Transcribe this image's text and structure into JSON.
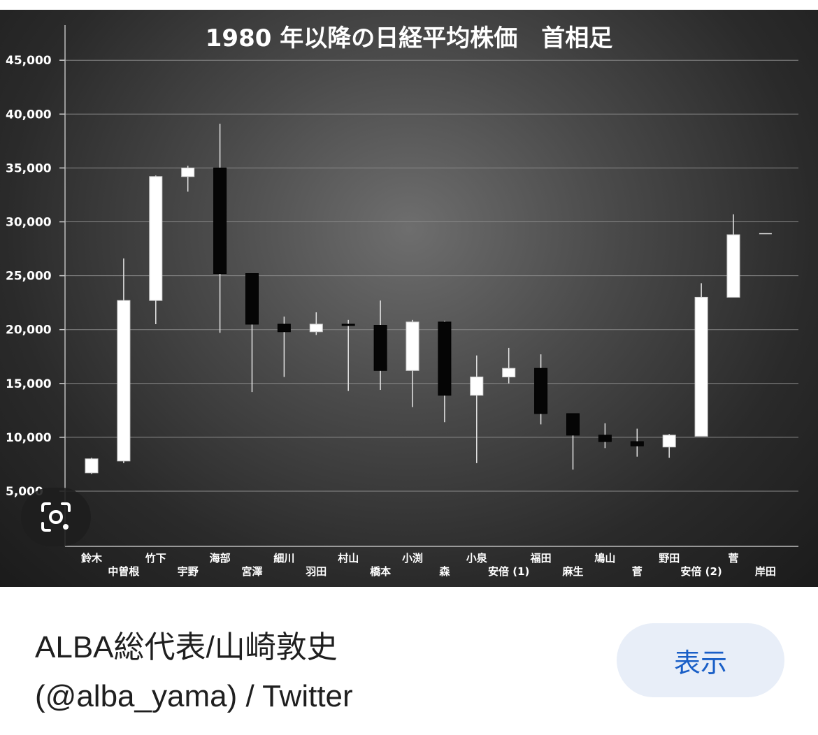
{
  "chart_data": {
    "type": "candlestick",
    "title": "1980 年以降の日経平均株価　首相足",
    "xlabel": "",
    "ylabel": "",
    "ylim": [
      0,
      47500
    ],
    "y_ticks": [
      {
        "value": 5000,
        "label": "5,000"
      },
      {
        "value": 10000,
        "label": "10,000"
      },
      {
        "value": 15000,
        "label": "15,000"
      },
      {
        "value": 20000,
        "label": "20,000"
      },
      {
        "value": 25000,
        "label": "25,000"
      },
      {
        "value": 30000,
        "label": "30,000"
      },
      {
        "value": 35000,
        "label": "35,000"
      },
      {
        "value": 40000,
        "label": "40,000"
      },
      {
        "value": 45000,
        "label": "45,000"
      }
    ],
    "grid": true,
    "categories": [
      "鈴木",
      "中曽根",
      "竹下",
      "宇野",
      "海部",
      "宮澤",
      "細川",
      "羽田",
      "村山",
      "橋本",
      "小渕",
      "森",
      "小泉",
      "安倍 (1)",
      "福田",
      "麻生",
      "鳩山",
      "菅",
      "野田",
      "安倍 (2)",
      "菅",
      "岸田"
    ],
    "candles": [
      {
        "name": "鈴木",
        "open": 6700,
        "close": 8000,
        "high": 8100,
        "low": 6600
      },
      {
        "name": "中曽根",
        "open": 7800,
        "close": 22700,
        "high": 26600,
        "low": 7600
      },
      {
        "name": "竹下",
        "open": 22700,
        "close": 34200,
        "high": 34300,
        "low": 20500
      },
      {
        "name": "宇野",
        "open": 34200,
        "close": 35000,
        "high": 35200,
        "low": 32800
      },
      {
        "name": "海部",
        "open": 35000,
        "close": 25200,
        "high": 39100,
        "low": 19700
      },
      {
        "name": "宮澤",
        "open": 25200,
        "close": 20500,
        "high": 25200,
        "low": 14200
      },
      {
        "name": "細川",
        "open": 20500,
        "close": 19800,
        "high": 21200,
        "low": 15600
      },
      {
        "name": "羽田",
        "open": 19800,
        "close": 20500,
        "high": 21600,
        "low": 19500
      },
      {
        "name": "村山",
        "open": 20500,
        "close": 20400,
        "high": 20900,
        "low": 14300
      },
      {
        "name": "橋本",
        "open": 20400,
        "close": 16200,
        "high": 22700,
        "low": 14400
      },
      {
        "name": "小渕",
        "open": 16200,
        "close": 20700,
        "high": 20900,
        "low": 12800
      },
      {
        "name": "森",
        "open": 20700,
        "close": 13900,
        "high": 20800,
        "low": 11400
      },
      {
        "name": "小泉",
        "open": 13900,
        "close": 15600,
        "high": 17600,
        "low": 7600
      },
      {
        "name": "安倍 (1)",
        "open": 15600,
        "close": 16400,
        "high": 18300,
        "low": 15000
      },
      {
        "name": "福田",
        "open": 16400,
        "close": 12200,
        "high": 17700,
        "low": 11200
      },
      {
        "name": "麻生",
        "open": 12200,
        "close": 10200,
        "high": 12200,
        "low": 7000
      },
      {
        "name": "鳩山",
        "open": 10200,
        "close": 9600,
        "high": 11300,
        "low": 9000
      },
      {
        "name": "菅",
        "open": 9600,
        "close": 9200,
        "high": 10800,
        "low": 8200
      },
      {
        "name": "野田",
        "open": 9100,
        "close": 10200,
        "high": 10300,
        "low": 8100
      },
      {
        "name": "安倍 (2)",
        "open": 10100,
        "close": 23000,
        "high": 24300,
        "low": 10100
      },
      {
        "name": "菅",
        "open": 23000,
        "close": 28800,
        "high": 30700,
        "low": 23000
      },
      {
        "name": "岸田",
        "open": 28900,
        "close": 28900,
        "high": 28900,
        "low": 28900
      }
    ],
    "colors": {
      "up": "#ffffff",
      "down": "#050505",
      "grid": "#8a8a8a",
      "text": "#ffffff"
    }
  },
  "caption": {
    "line1": "ALBA総代表/山崎敦史",
    "line2": "(@alba_yama) / Twitter"
  },
  "show_button": {
    "label": "表示"
  },
  "lens_button": {
    "icon": "lens-icon"
  },
  "theme": {
    "accent": "#1a5fc7",
    "button_bg": "#e8eef8"
  }
}
